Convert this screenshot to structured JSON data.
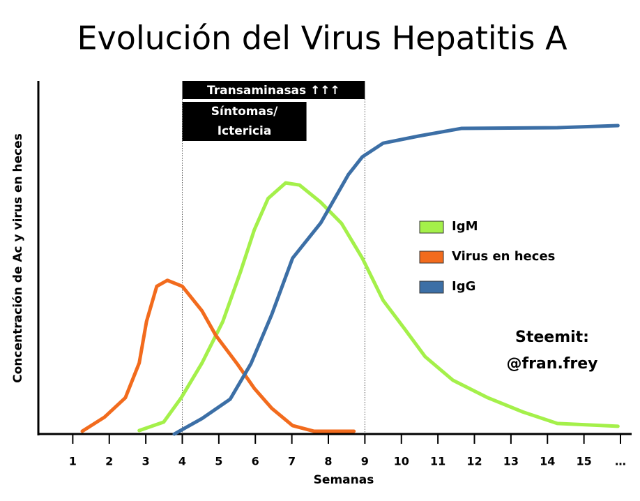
{
  "chart_data": {
    "type": "line",
    "title": "Evolución del Virus Hepatitis A",
    "xlabel": "Semanas",
    "ylabel": "Concentración de Ac y virus en heces",
    "xlim": [
      0,
      16
    ],
    "ylim": [
      0,
      100
    ],
    "xticks": [
      1,
      2,
      3,
      4,
      5,
      6,
      7,
      8,
      9,
      10,
      11,
      12,
      13,
      14,
      15,
      {
        "value": 16,
        "label": "…"
      }
    ],
    "series": [
      {
        "name": "IgM",
        "color": "#a4f04a",
        "x": [
          2.82,
          3.49,
          3.97,
          4.54,
          5.11,
          5.59,
          5.97,
          6.35,
          6.83,
          7.21,
          7.79,
          8.36,
          8.93,
          9.5,
          10.08,
          10.65,
          11.41,
          12.37,
          13.32,
          14.27,
          15.93
        ],
        "values": [
          1,
          3.4,
          10.3,
          20.2,
          32,
          46,
          58,
          67,
          71.4,
          70.8,
          65.9,
          59.9,
          50,
          38,
          30,
          22,
          15.3,
          10.3,
          6.3,
          3,
          2.2
        ]
      },
      {
        "name": "Virus en heces",
        "color": "#f26b1d",
        "x": [
          1.26,
          1.87,
          2.44,
          2.82,
          3.02,
          3.3,
          3.59,
          4.0,
          4.54,
          4.92,
          5.5,
          5.97,
          6.45,
          7.02,
          7.6,
          8.7
        ],
        "values": [
          0.8,
          4.8,
          10.3,
          20.2,
          32,
          42,
          43.7,
          42,
          35,
          28,
          20,
          13,
          7.3,
          2.4,
          0.8,
          0.8
        ]
      },
      {
        "name": "IgG",
        "color": "#3c6fa6",
        "x": [
          3.78,
          4.54,
          5.31,
          5.88,
          6.45,
          7.02,
          7.79,
          8.55,
          8.93,
          9.5,
          10.46,
          11.64,
          14.27,
          15.93
        ],
        "values": [
          0,
          4.4,
          9.9,
          20,
          34,
          50,
          60,
          73.8,
          78.8,
          82.7,
          84.7,
          86.9,
          87.1,
          87.7
        ]
      }
    ],
    "annotations": [
      {
        "label": [
          "Transaminasas ↑↑↑"
        ],
        "start": 4,
        "end": 9
      },
      {
        "label": [
          "Síntomas/",
          "Ictericia"
        ],
        "start": 4,
        "end": 7.4
      }
    ],
    "watermark": [
      "Steemit:",
      "@fran.frey"
    ]
  }
}
